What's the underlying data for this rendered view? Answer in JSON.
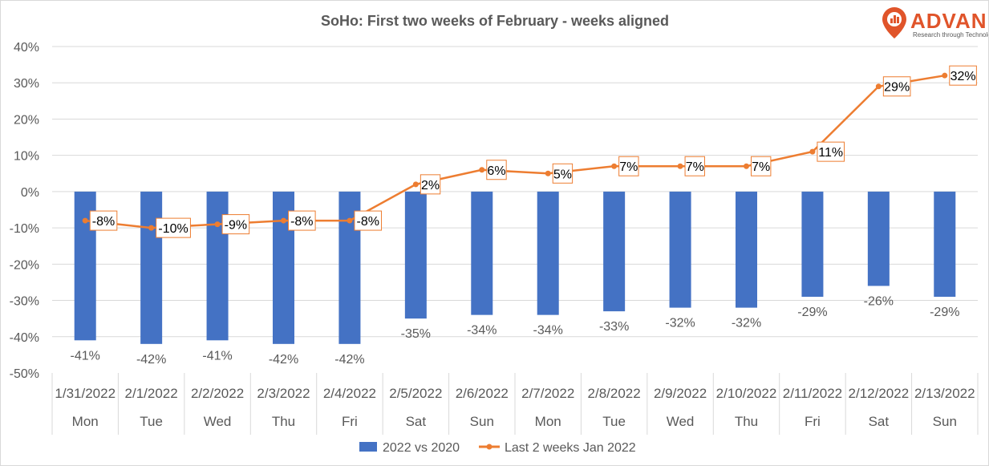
{
  "logo": {
    "name": "ADVAN",
    "tagline": "Research through Technology",
    "color": "#e0542a"
  },
  "chart_data": {
    "type": "bar+line",
    "title": "SoHo: First two weeks of February - weeks aligned",
    "ylim": [
      -50,
      40
    ],
    "yticks": [
      40,
      30,
      20,
      10,
      0,
      -10,
      -20,
      -30,
      -40,
      -50
    ],
    "ytick_labels": [
      "40%",
      "30%",
      "20%",
      "10%",
      "0%",
      "-10%",
      "-20%",
      "-30%",
      "-40%",
      "-50%"
    ],
    "dates": [
      "1/31/2022",
      "2/1/2022",
      "2/2/2022",
      "2/3/2022",
      "2/4/2022",
      "2/5/2022",
      "2/6/2022",
      "2/7/2022",
      "2/8/2022",
      "2/9/2022",
      "2/10/2022",
      "2/11/2022",
      "2/12/2022",
      "2/13/2022"
    ],
    "weekdays": [
      "Mon",
      "Tue",
      "Wed",
      "Thu",
      "Fri",
      "Sat",
      "Sun",
      "Mon",
      "Tue",
      "Wed",
      "Thu",
      "Fri",
      "Sat",
      "Sun"
    ],
    "series": [
      {
        "name": "2022 vs 2020",
        "kind": "bar",
        "color": "#4472c4",
        "values": [
          -41,
          -42,
          -41,
          -42,
          -42,
          -35,
          -34,
          -34,
          -33,
          -32,
          -32,
          -29,
          -26,
          -29
        ],
        "labels": [
          "-41%",
          "-42%",
          "-41%",
          "-42%",
          "-42%",
          "-35%",
          "-34%",
          "-34%",
          "-33%",
          "-32%",
          "-32%",
          "-29%",
          "-26%",
          "-29%"
        ]
      },
      {
        "name": "Last 2 weeks Jan 2022",
        "kind": "line",
        "color": "#ed7d31",
        "values": [
          -8,
          -10,
          -9,
          -8,
          -8,
          2,
          6,
          5,
          7,
          7,
          7,
          11,
          29,
          32
        ],
        "labels": [
          "-8%",
          "-10%",
          "-9%",
          "-8%",
          "-8%",
          "2%",
          "6%",
          "5%",
          "7%",
          "7%",
          "7%",
          "11%",
          "29%",
          "32%"
        ]
      }
    ],
    "legend_position": "bottom"
  }
}
